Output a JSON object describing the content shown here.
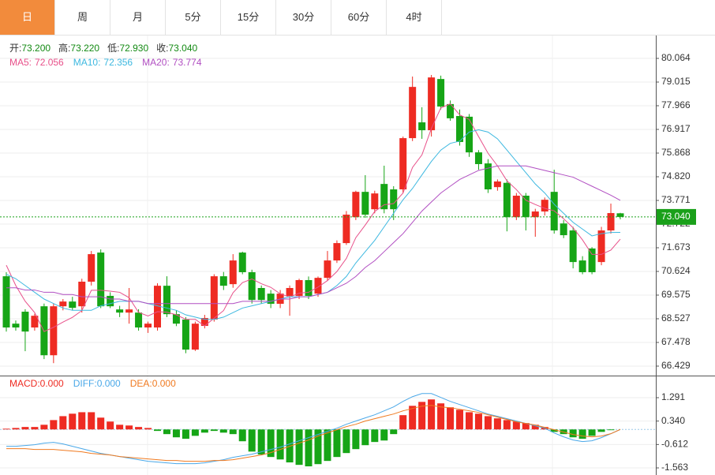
{
  "tabs": [
    "日",
    "周",
    "月",
    "5分",
    "15分",
    "30分",
    "60分",
    "4时"
  ],
  "active_tab": 0,
  "chart_data": [
    {
      "type": "candlestick",
      "ylim": [
        66.044,
        81.078
      ],
      "yticks": [
        80.064,
        79.015,
        77.966,
        76.917,
        75.868,
        {
          "value": 74.82,
          "label": "74.820"
        },
        73.771,
        72.722,
        71.673,
        70.624,
        69.575,
        68.527,
        67.478,
        66.429
      ],
      "grid": true,
      "ohlc_legend": [
        {
          "name": "开:",
          "value": 73.2,
          "value_label": "73.200"
        },
        {
          "name": "高:",
          "value": 73.22,
          "value_label": "73.220"
        },
        {
          "name": "低:",
          "value": 72.93,
          "value_label": "72.930"
        },
        {
          "name": "收:",
          "value": 73.04,
          "value_label": "73.040"
        }
      ],
      "last_price": {
        "value": 73.04,
        "label": "73.040"
      },
      "up_color": "#ee2b22",
      "down_color": "#16a516",
      "last_color": "#1aa01a",
      "candles": {
        "open": [
          70.41,
          68.31,
          68.84,
          68.14,
          69.08,
          66.91,
          69.08,
          69.29,
          69.08,
          70.17,
          71.46,
          69.54,
          68.94,
          68.8,
          68.8,
          68.14,
          68.14,
          69.99,
          68.73,
          68.49,
          67.16,
          68.21,
          68.49,
          70.41,
          70.06,
          71.46,
          70.59,
          69.89,
          69.64,
          69.19,
          69.54,
          69.54,
          70.24,
          69.64,
          70.34,
          71.11,
          71.88,
          73.03,
          74.15,
          73.38,
          74.5,
          74.26,
          74.26,
          76.53,
          77.23,
          76.88,
          79.15,
          78.04,
          77.51,
          77.48,
          75.9,
          75.41,
          74.36,
          74.55,
          73.03,
          73.98,
          73.03,
          73.28,
          74.15,
          72.75,
          72.44,
          71.11,
          71.64,
          71.04,
          72.44,
          73.2
        ],
        "high": [
          70.59,
          68.45,
          68.95,
          68.75,
          69.2,
          69.2,
          69.4,
          69.5,
          70.3,
          71.53,
          71.6,
          69.7,
          69.1,
          69.89,
          68.95,
          68.4,
          70.1,
          70.41,
          68.9,
          68.6,
          68.4,
          68.7,
          70.5,
          70.6,
          71.39,
          71.5,
          70.7,
          70.0,
          69.8,
          69.8,
          70.0,
          70.3,
          70.4,
          70.4,
          71.53,
          72.0,
          73.3,
          74.2,
          74.89,
          74.2,
          75.31,
          74.4,
          76.6,
          79.26,
          77.9,
          79.33,
          79.3,
          78.2,
          77.8,
          77.6,
          76.0,
          75.6,
          74.7,
          74.7,
          74.1,
          74.1,
          73.4,
          73.9,
          75.13,
          72.9,
          72.6,
          71.3,
          71.7,
          72.6,
          73.63,
          73.22
        ],
        "low": [
          67.96,
          68.0,
          67.09,
          68.0,
          66.74,
          66.56,
          68.9,
          68.9,
          68.8,
          70.0,
          69.0,
          69.0,
          68.6,
          68.31,
          68.0,
          67.9,
          68.0,
          68.6,
          68.2,
          67.0,
          67.1,
          68.1,
          68.4,
          69.8,
          69.9,
          70.5,
          69.2,
          69.2,
          69.0,
          69.0,
          68.66,
          69.4,
          69.4,
          69.5,
          70.2,
          71.0,
          71.8,
          72.9,
          73.0,
          73.2,
          73.2,
          72.9,
          74.1,
          76.4,
          76.5,
          76.6,
          77.8,
          77.3,
          76.2,
          75.7,
          75.13,
          74.1,
          74.2,
          72.4,
          72.9,
          72.44,
          72.16,
          73.1,
          72.3,
          72.1,
          70.76,
          70.5,
          70.5,
          70.9,
          72.3,
          72.93
        ],
        "close": [
          68.14,
          68.14,
          67.96,
          68.66,
          66.91,
          69.08,
          69.29,
          69.01,
          70.17,
          71.39,
          69.08,
          69.08,
          68.8,
          68.94,
          68.14,
          68.31,
          69.99,
          68.73,
          68.31,
          67.16,
          68.31,
          68.56,
          70.41,
          69.99,
          71.11,
          70.59,
          69.36,
          69.36,
          69.19,
          69.64,
          69.89,
          70.24,
          69.54,
          70.34,
          71.11,
          71.88,
          73.14,
          74.15,
          73.14,
          74.08,
          73.38,
          73.38,
          76.53,
          78.8,
          76.88,
          79.22,
          77.93,
          77.41,
          76.36,
          75.9,
          75.38,
          74.26,
          74.61,
          73.03,
          73.98,
          73.03,
          73.28,
          73.8,
          72.44,
          72.23,
          71.04,
          70.59,
          70.59,
          72.44,
          73.21,
          73.04
        ]
      },
      "lines": [
        {
          "name": "MA5:",
          "color": "#e8508a",
          "values": [
            70.9,
            70.0,
            69.3,
            68.8,
            67.96,
            68.15,
            68.38,
            68.59,
            68.89,
            69.79,
            69.79,
            69.75,
            69.7,
            69.46,
            68.81,
            68.65,
            68.84,
            68.82,
            68.7,
            68.5,
            68.5,
            68.21,
            68.55,
            68.89,
            69.68,
            70.13,
            70.29,
            70.08,
            69.92,
            69.63,
            69.49,
            69.66,
            69.7,
            69.93,
            70.22,
            70.62,
            71.2,
            72.12,
            72.68,
            73.28,
            73.58,
            73.63,
            74.1,
            75.23,
            75.79,
            76.96,
            77.87,
            78.05,
            77.56,
            77.36,
            76.6,
            75.86,
            75.3,
            74.64,
            74.25,
            73.78,
            73.59,
            73.42,
            73.31,
            72.96,
            72.56,
            72.02,
            71.38,
            71.38,
            71.57,
            72.056
          ]
        },
        {
          "name": "MA10:",
          "color": "#3db8e0",
          "values": [
            70.5,
            70.3,
            70.0,
            69.7,
            69.4,
            69.2,
            69.0,
            68.9,
            68.9,
            68.9,
            69.1,
            69.2,
            69.3,
            69.3,
            69.3,
            69.2,
            69.1,
            69.0,
            68.9,
            68.7,
            68.6,
            68.5,
            68.5,
            68.6,
            68.8,
            69.0,
            69.1,
            69.2,
            69.3,
            69.4,
            69.5,
            69.5,
            69.5,
            69.6,
            69.7,
            70.0,
            70.4,
            71.0,
            71.5,
            72.0,
            72.6,
            73.2,
            73.8,
            74.3,
            74.9,
            75.5,
            76.0,
            76.3,
            76.4,
            76.8,
            76.9,
            76.8,
            76.5,
            76.0,
            75.5,
            75.0,
            74.5,
            74.1,
            73.6,
            73.2,
            72.8,
            72.5,
            72.2,
            72.3,
            72.35,
            72.356
          ]
        },
        {
          "name": "MA20:",
          "color": "#b14fc2",
          "values": [
            69.9,
            69.9,
            69.8,
            69.8,
            69.7,
            69.7,
            69.6,
            69.6,
            69.5,
            69.5,
            69.5,
            69.4,
            69.4,
            69.3,
            69.3,
            69.2,
            69.2,
            69.2,
            69.2,
            69.2,
            69.2,
            69.2,
            69.2,
            69.2,
            69.2,
            69.3,
            69.3,
            69.3,
            69.3,
            69.4,
            69.4,
            69.5,
            69.5,
            69.6,
            69.7,
            69.9,
            70.1,
            70.4,
            70.8,
            71.1,
            71.5,
            71.9,
            72.3,
            72.8,
            73.3,
            73.7,
            74.1,
            74.4,
            74.7,
            74.9,
            75.1,
            75.2,
            75.3,
            75.3,
            75.3,
            75.3,
            75.2,
            75.1,
            75.0,
            74.9,
            74.8,
            74.6,
            74.4,
            74.2,
            74.0,
            73.774
          ]
        }
      ]
    },
    {
      "type": "macd",
      "ylim": [
        -1.852,
        2.125
      ],
      "yticks": [
        1.291,
        {
          "value": 0.34,
          "label": "0.340"
        },
        -0.612,
        -1.563
      ],
      "bars": {
        "name": "MACD:",
        "value_label": "0.000",
        "up_color": "#ee2b22",
        "down_color": "#16a516",
        "values": [
          0.03,
          0.06,
          0.1,
          0.1,
          0.19,
          0.38,
          0.54,
          0.64,
          0.7,
          0.7,
          0.48,
          0.32,
          0.19,
          0.16,
          0.1,
          0.06,
          -0.06,
          -0.19,
          -0.32,
          -0.38,
          -0.26,
          -0.13,
          -0.06,
          -0.13,
          -0.19,
          -0.48,
          -0.9,
          -1.02,
          -1.12,
          -1.22,
          -1.34,
          -1.44,
          -1.5,
          -1.41,
          -1.28,
          -1.12,
          -0.96,
          -0.8,
          -0.64,
          -0.51,
          -0.45,
          -0.19,
          0.58,
          0.96,
          1.12,
          1.22,
          1.06,
          0.9,
          0.8,
          0.7,
          0.64,
          0.54,
          0.45,
          0.38,
          0.32,
          0.26,
          0.19,
          0.1,
          -0.1,
          -0.19,
          -0.32,
          -0.38,
          -0.26,
          -0.1,
          -0.03,
          0
        ]
      },
      "lines": [
        {
          "name": "DIFF:",
          "value_label": "0.000",
          "color": "#4aa8e8",
          "values": [
            -0.685,
            -0.685,
            -0.653,
            -0.621,
            -0.557,
            -0.525,
            -0.589,
            -0.685,
            -0.781,
            -0.877,
            -0.973,
            -1.037,
            -1.102,
            -1.166,
            -1.23,
            -1.294,
            -1.326,
            -1.358,
            -1.39,
            -1.39,
            -1.39,
            -1.358,
            -1.294,
            -1.23,
            -1.134,
            -1.07,
            -1.005,
            -0.909,
            -0.813,
            -0.717,
            -0.589,
            -0.461,
            -0.333,
            -0.205,
            -0.077,
            0.051,
            0.211,
            0.34,
            0.468,
            0.596,
            0.756,
            0.916,
            1.14,
            1.332,
            1.46,
            1.46,
            1.3,
            1.14,
            1.012,
            0.884,
            0.756,
            0.628,
            0.532,
            0.436,
            0.34,
            0.244,
            0.147,
            0.051,
            -0.141,
            -0.301,
            -0.429,
            -0.493,
            -0.461,
            -0.333,
            -0.173,
            0
          ]
        },
        {
          "name": "DEA:",
          "value_label": "0.000",
          "color": "#f07a20",
          "values": [
            -0.781,
            -0.781,
            -0.781,
            -0.813,
            -0.813,
            -0.813,
            -0.845,
            -0.877,
            -0.909,
            -0.973,
            -1.005,
            -1.037,
            -1.102,
            -1.134,
            -1.166,
            -1.198,
            -1.23,
            -1.262,
            -1.262,
            -1.294,
            -1.294,
            -1.294,
            -1.262,
            -1.262,
            -1.23,
            -1.166,
            -1.102,
            -1.037,
            -0.941,
            -0.813,
            -0.685,
            -0.557,
            -0.429,
            -0.269,
            -0.141,
            -0.013,
            0.115,
            0.211,
            0.34,
            0.436,
            0.532,
            0.628,
            0.756,
            0.852,
            0.948,
            0.98,
            0.916,
            0.884,
            0.82,
            0.756,
            0.692,
            0.596,
            0.5,
            0.404,
            0.308,
            0.244,
            0.18,
            0.083,
            -0.013,
            -0.109,
            -0.205,
            -0.269,
            -0.301,
            -0.269,
            -0.173,
            0
          ]
        }
      ]
    }
  ]
}
